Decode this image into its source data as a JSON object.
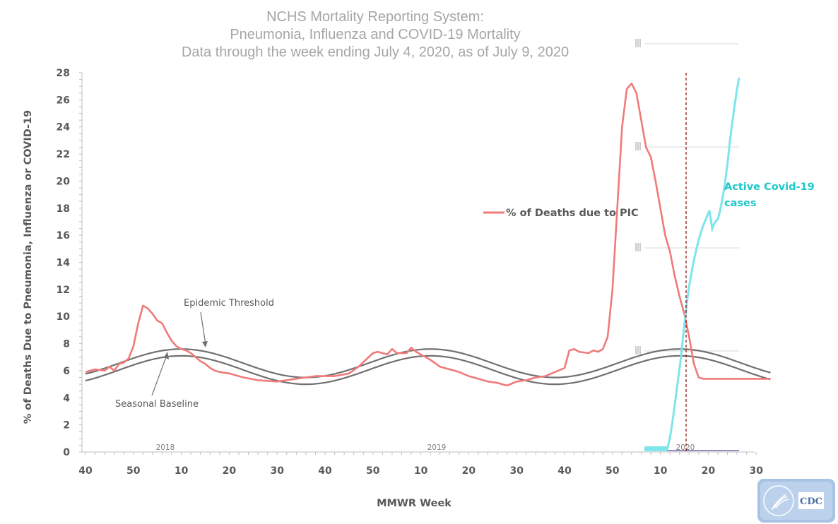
{
  "chart_data": {
    "type": "line",
    "title": [
      "NCHS Mortality Reporting System:",
      "Pneumonia, Influenza and COVID-19 Mortality",
      "Data through the week ending July 4, 2020, as of July 9, 2020"
    ],
    "xlabel": "MMWR Week",
    "ylabel": "% of Deaths Due to Pneumonia, Influenza or  COVID-19",
    "ylim": [
      0,
      28
    ],
    "yticks": [
      0,
      2,
      4,
      6,
      8,
      10,
      12,
      14,
      16,
      18,
      20,
      22,
      24,
      26,
      28
    ],
    "xticks": [
      "40",
      "50",
      "10",
      "20",
      "30",
      "40",
      "50",
      "10",
      "20",
      "30",
      "40",
      "50",
      "10",
      "20",
      "30"
    ],
    "year_labels": [
      "2018",
      "2019",
      "2020"
    ],
    "legend": "% of Deaths due to PIC",
    "annotations": {
      "threshold": "Epidemic Threshold",
      "baseline": "Seasonal Baseline",
      "covid": [
        "Active Covid-19",
        "cases"
      ]
    },
    "colors": {
      "pic": "#f07a7a",
      "threshold": "#707070",
      "covid": "#7ee5ea",
      "marker": "#c00000"
    },
    "series": [
      {
        "name": "% of Deaths due to PIC",
        "x": [
          0,
          2,
          4,
          5,
          6,
          7,
          8,
          9,
          10,
          11,
          12,
          13,
          14,
          15,
          16,
          17,
          18,
          19,
          20,
          21,
          22,
          23,
          24,
          25,
          26,
          27,
          28,
          30,
          33,
          36,
          40,
          44,
          48,
          52,
          55,
          57,
          60,
          61,
          63,
          64,
          65,
          67,
          68,
          69,
          70,
          72,
          74,
          76,
          78,
          80,
          82,
          84,
          86,
          88,
          90,
          92,
          94,
          96,
          98,
          100,
          101,
          102,
          103,
          105,
          106,
          107,
          108,
          109,
          110,
          111,
          112,
          113,
          114,
          115,
          116,
          117,
          118,
          119,
          120,
          121,
          122,
          123,
          124,
          125,
          126,
          127,
          128,
          129,
          130,
          131,
          132,
          133,
          134,
          135,
          136,
          137,
          138,
          139,
          140,
          141,
          142,
          143
        ],
        "values": [
          5.9,
          6.1,
          6.0,
          6.3,
          6.0,
          6.5,
          6.6,
          6.9,
          7.8,
          9.5,
          10.8,
          10.6,
          10.2,
          9.7,
          9.5,
          8.8,
          8.2,
          7.8,
          7.6,
          7.5,
          7.3,
          7.0,
          6.7,
          6.5,
          6.2,
          6.0,
          5.9,
          5.8,
          5.5,
          5.3,
          5.2,
          5.4,
          5.6,
          5.6,
          5.8,
          6.3,
          7.3,
          7.4,
          7.2,
          7.6,
          7.3,
          7.3,
          7.7,
          7.4,
          7.2,
          6.8,
          6.3,
          6.1,
          5.9,
          5.6,
          5.4,
          5.2,
          5.1,
          4.9,
          5.2,
          5.3,
          5.5,
          5.6,
          5.9,
          6.2,
          7.5,
          7.6,
          7.4,
          7.3,
          7.5,
          7.4,
          7.6,
          8.5,
          12.0,
          18.0,
          24.0,
          26.8,
          27.2,
          26.5,
          24.5,
          22.5,
          21.8,
          20.0,
          18.0,
          16.0,
          14.8,
          13.0,
          11.5,
          10.2,
          8.5,
          6.5,
          5.5,
          5.4,
          5.4,
          5.4,
          5.4,
          5.4,
          5.4,
          5.4,
          5.4,
          5.4,
          5.4,
          5.4,
          5.4,
          5.4,
          5.4,
          5.4
        ]
      }
    ]
  },
  "logo": {
    "text": "CDC"
  }
}
